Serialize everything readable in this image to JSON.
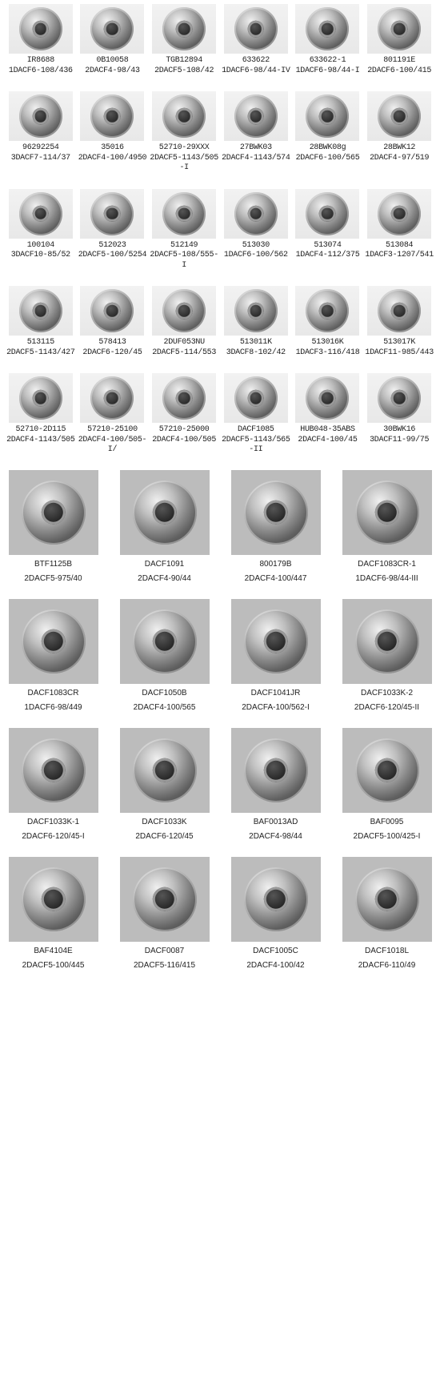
{
  "rows6": [
    [
      {
        "l1": "IR8688",
        "l2": "1DACF6-108/436"
      },
      {
        "l1": "0B10058",
        "l2": "2DACF4-98/43"
      },
      {
        "l1": "TGB12894",
        "l2": "2DACF5-108/42"
      },
      {
        "l1": "633622",
        "l2": "1DACF6-98/44-IV"
      },
      {
        "l1": "633622-1",
        "l2": "1DACF6-98/44-I"
      },
      {
        "l1": "801191E",
        "l2": "2DACF6-100/415"
      }
    ],
    [
      {
        "l1": "96292254",
        "l2": "3DACF7-114/37"
      },
      {
        "l1": "35016",
        "l2": "2DACF4-100/4950"
      },
      {
        "l1": "52710-29XXX",
        "l2": "2DACF5-1143/505-I"
      },
      {
        "l1": "27BWK03",
        "l2": "2DACF4-1143/574"
      },
      {
        "l1": "28BWK08g",
        "l2": "2DACF6-100/565"
      },
      {
        "l1": "28BWK12",
        "l2": "2DACF4-97/519"
      }
    ],
    [
      {
        "l1": "100104",
        "l2": "3DACF10-85/52"
      },
      {
        "l1": "512023",
        "l2": "2DACF5-100/5254"
      },
      {
        "l1": "512149",
        "l2": "2DACF5-108/555-I"
      },
      {
        "l1": "513030",
        "l2": "1DACF6-100/562"
      },
      {
        "l1": "513074",
        "l2": "1DACF4-112/375"
      },
      {
        "l1": "513084",
        "l2": "1DACF3-1207/541"
      }
    ],
    [
      {
        "l1": "513115",
        "l2": "2DACF5-1143/427"
      },
      {
        "l1": "578413",
        "l2": "2DACF6-120/45"
      },
      {
        "l1": "2DUF053NU",
        "l2": "2DACF5-114/553"
      },
      {
        "l1": "513011K",
        "l2": "3DACF8-102/42"
      },
      {
        "l1": "513016K",
        "l2": "1DACF3-116/418"
      },
      {
        "l1": "513017K",
        "l2": "1DACF11-985/443"
      }
    ],
    [
      {
        "l1": "52710-2D115",
        "l2": "2DACF4-1143/505"
      },
      {
        "l1": "57210-25100",
        "l2": "2DACF4-100/505-I/"
      },
      {
        "l1": "57210-25000",
        "l2": "2DACF4-100/505"
      },
      {
        "l1": "DACF1085",
        "l2": "2DACF5-1143/565-II"
      },
      {
        "l1": "HUB048-35ABS",
        "l2": "2DACF4-100/45"
      },
      {
        "l1": "30BWK16",
        "l2": "3DACF11-99/75"
      }
    ]
  ],
  "rows4": [
    [
      {
        "l1": "BTF1125B",
        "l2": "2DACF5-975/40"
      },
      {
        "l1": "DACF1091",
        "l2": "2DACF4-90/44"
      },
      {
        "l1": "800179B",
        "l2": "2DACF4-100/447"
      },
      {
        "l1": "DACF1083CR-1",
        "l2": "1DACF6-98/44-III"
      }
    ],
    [
      {
        "l1": "DACF1083CR",
        "l2": "1DACF6-98/449"
      },
      {
        "l1": "DACF1050B",
        "l2": "2DACF4-100/565"
      },
      {
        "l1": "DACF1041JR",
        "l2": "2DACFA-100/562-I"
      },
      {
        "l1": "DACF1033K-2",
        "l2": "2DACF6-120/45-II"
      }
    ],
    [
      {
        "l1": "DACF1033K-1",
        "l2": "2DACF6-120/45-I"
      },
      {
        "l1": "DACF1033K",
        "l2": "2DACF6-120/45"
      },
      {
        "l1": "BAF0013AD",
        "l2": "2DACF4-98/44"
      },
      {
        "l1": "BAF0095",
        "l2": "2DACF5-100/425-I"
      }
    ],
    [
      {
        "l1": "BAF4104E",
        "l2": "2DACF5-100/445"
      },
      {
        "l1": "DACF0087",
        "l2": "2DACF5-116/415"
      },
      {
        "l1": "DACF1005C",
        "l2": "2DACF4-100/42"
      },
      {
        "l1": "DACF1018L",
        "l2": "2DACF6-110/49"
      }
    ]
  ]
}
